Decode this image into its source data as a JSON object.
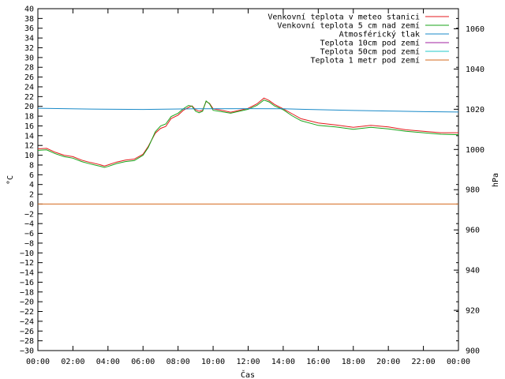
{
  "chart_data": {
    "type": "line",
    "xlabel": "Čas",
    "ylabel_left": "°C",
    "ylabel_right": "hPa",
    "x_ticks": [
      "00:00",
      "02:00",
      "04:00",
      "06:00",
      "08:00",
      "10:00",
      "12:00",
      "14:00",
      "16:00",
      "18:00",
      "20:00",
      "22:00",
      "00:00"
    ],
    "xlim_hours": [
      0,
      24
    ],
    "ylim_left": [
      -30,
      40
    ],
    "ylim_right": [
      900,
      1070
    ],
    "left_tick_step": 2,
    "right_ticks": [
      900,
      920,
      940,
      960,
      980,
      1000,
      1020,
      1040,
      1060
    ],
    "grid": false,
    "legend_position": "top-right",
    "series": [
      {
        "name": "Venkovní teplota v meteo stanici",
        "color": "#e41a1c",
        "axis": "left",
        "points": [
          [
            0,
            11.3
          ],
          [
            0.5,
            11.4
          ],
          [
            1,
            10.6
          ],
          [
            1.5,
            10.0
          ],
          [
            2,
            9.7
          ],
          [
            2.5,
            9.0
          ],
          [
            3,
            8.5
          ],
          [
            3.5,
            8.1
          ],
          [
            3.8,
            7.8
          ],
          [
            4,
            8.0
          ],
          [
            4.5,
            8.6
          ],
          [
            5,
            9.0
          ],
          [
            5.5,
            9.2
          ],
          [
            6,
            10.2
          ],
          [
            6.3,
            11.8
          ],
          [
            6.7,
            14.5
          ],
          [
            7,
            15.5
          ],
          [
            7.3,
            15.9
          ],
          [
            7.6,
            17.5
          ],
          [
            8,
            18.2
          ],
          [
            8.3,
            19.2
          ],
          [
            8.6,
            19.8
          ],
          [
            8.8,
            20.1
          ],
          [
            9,
            19.3
          ],
          [
            9.2,
            19.0
          ],
          [
            9.4,
            19.2
          ],
          [
            9.6,
            21.0
          ],
          [
            9.8,
            20.6
          ],
          [
            10,
            19.5
          ],
          [
            10.5,
            19.2
          ],
          [
            11,
            18.8
          ],
          [
            11.5,
            19.2
          ],
          [
            12,
            19.6
          ],
          [
            12.5,
            20.5
          ],
          [
            12.9,
            21.7
          ],
          [
            13.2,
            21.2
          ],
          [
            13.5,
            20.4
          ],
          [
            14,
            19.5
          ],
          [
            14.5,
            18.5
          ],
          [
            15,
            17.5
          ],
          [
            16,
            16.6
          ],
          [
            17,
            16.2
          ],
          [
            18,
            15.7
          ],
          [
            19,
            16.1
          ],
          [
            20,
            15.8
          ],
          [
            21,
            15.2
          ],
          [
            22,
            14.9
          ],
          [
            23,
            14.6
          ],
          [
            24,
            14.6
          ]
        ]
      },
      {
        "name": "Venkovní teplota 5 cm nad zemí",
        "color": "#1aa31a",
        "axis": "left",
        "points": [
          [
            0,
            11.0
          ],
          [
            0.5,
            11.1
          ],
          [
            1,
            10.3
          ],
          [
            1.5,
            9.7
          ],
          [
            2,
            9.4
          ],
          [
            2.5,
            8.7
          ],
          [
            3,
            8.2
          ],
          [
            3.5,
            7.8
          ],
          [
            3.8,
            7.5
          ],
          [
            4,
            7.7
          ],
          [
            4.5,
            8.3
          ],
          [
            5,
            8.7
          ],
          [
            5.5,
            8.9
          ],
          [
            6,
            10.0
          ],
          [
            6.3,
            11.6
          ],
          [
            6.7,
            14.8
          ],
          [
            7,
            16.0
          ],
          [
            7.3,
            16.4
          ],
          [
            7.6,
            17.9
          ],
          [
            8,
            18.6
          ],
          [
            8.3,
            19.5
          ],
          [
            8.6,
            20.2
          ],
          [
            8.8,
            20.0
          ],
          [
            9,
            19.0
          ],
          [
            9.2,
            18.7
          ],
          [
            9.4,
            19.0
          ],
          [
            9.6,
            21.1
          ],
          [
            9.8,
            20.5
          ],
          [
            10,
            19.2
          ],
          [
            10.5,
            18.9
          ],
          [
            11,
            18.6
          ],
          [
            11.5,
            19.0
          ],
          [
            12,
            19.4
          ],
          [
            12.5,
            20.2
          ],
          [
            12.9,
            21.3
          ],
          [
            13.2,
            20.9
          ],
          [
            13.5,
            20.1
          ],
          [
            14,
            19.3
          ],
          [
            14.5,
            18.1
          ],
          [
            15,
            17.1
          ],
          [
            16,
            16.1
          ],
          [
            17,
            15.8
          ],
          [
            18,
            15.3
          ],
          [
            19,
            15.7
          ],
          [
            20,
            15.4
          ],
          [
            21,
            14.9
          ],
          [
            22,
            14.6
          ],
          [
            23,
            14.3
          ],
          [
            24,
            14.2
          ]
        ]
      },
      {
        "name": "Atmosférický tlak",
        "color": "#1a8ac8",
        "axis": "right",
        "points": [
          [
            0,
            1020.5
          ],
          [
            3,
            1020.1
          ],
          [
            6,
            1019.9
          ],
          [
            9,
            1020.2
          ],
          [
            12,
            1020.3
          ],
          [
            14,
            1020.2
          ],
          [
            16,
            1019.8
          ],
          [
            18,
            1019.4
          ],
          [
            20,
            1019.1
          ],
          [
            22,
            1018.8
          ],
          [
            24,
            1018.6
          ]
        ]
      },
      {
        "name": "Teplota 10cm pod zemí",
        "color": "#a020a0",
        "axis": "left",
        "points": []
      },
      {
        "name": "Teplota 50cm pod zemí",
        "color": "#20c8c8",
        "axis": "left",
        "points": []
      },
      {
        "name": "Teplota 1 metr pod zemí",
        "color": "#d46a1e",
        "axis": "left",
        "points": [
          [
            0,
            0
          ],
          [
            24,
            0
          ]
        ]
      }
    ]
  }
}
